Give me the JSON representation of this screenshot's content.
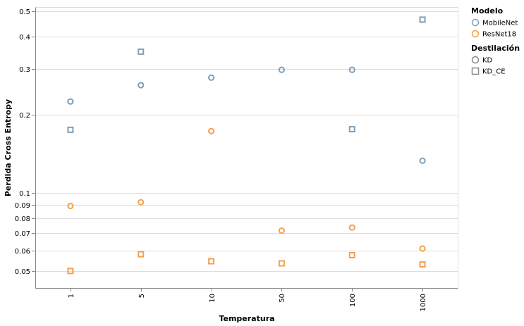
{
  "chart_data": {
    "type": "scatter",
    "xlabel": "Temperatura",
    "ylabel": "Perdida Cross Entropy",
    "x_scale": "categorical",
    "y_scale": "log",
    "categories": [
      "1",
      "5",
      "10",
      "50",
      "100",
      "1000"
    ],
    "ylim": [
      0.043,
      0.52
    ],
    "y_ticks": [
      0.05,
      0.06,
      0.07,
      0.08,
      0.09,
      0.1,
      0.2,
      0.3,
      0.4,
      0.5
    ],
    "y_tick_labels": [
      "0.05",
      "0.06",
      "0.07",
      "0.08",
      "0.09",
      "0.1",
      "0.2",
      "0.3",
      "0.4",
      "0.5"
    ],
    "grid": true,
    "legend_position": "top-right",
    "legend": {
      "color_title": "Modelo",
      "color_entries": [
        {
          "label": "MobileNet",
          "color": "#7f9fb8"
        },
        {
          "label": "ResNet18",
          "color": "#f5a04e"
        }
      ],
      "shape_title": "Destilación",
      "shape_entries": [
        {
          "label": "KD",
          "shape": "circle"
        },
        {
          "label": "KD_CE",
          "shape": "square"
        }
      ]
    },
    "series": [
      {
        "model": "MobileNet",
        "distillation": "KD",
        "color": "#7f9fb8",
        "shape": "circle",
        "values": [
          0.225,
          0.26,
          0.278,
          0.298,
          0.298,
          0.133
        ]
      },
      {
        "model": "MobileNet",
        "distillation": "KD_CE",
        "color": "#7f9fb8",
        "shape": "square",
        "values": [
          0.175,
          0.35,
          null,
          null,
          0.176,
          0.465
        ]
      },
      {
        "model": "ResNet18",
        "distillation": "KD",
        "color": "#f5a04e",
        "shape": "circle",
        "values": [
          0.089,
          0.092,
          0.173,
          0.0715,
          0.0735,
          0.061
        ]
      },
      {
        "model": "ResNet18",
        "distillation": "KD_CE",
        "color": "#f5a04e",
        "shape": "square",
        "values": [
          0.05,
          0.058,
          0.0545,
          0.0535,
          0.0575,
          0.053
        ]
      }
    ]
  }
}
